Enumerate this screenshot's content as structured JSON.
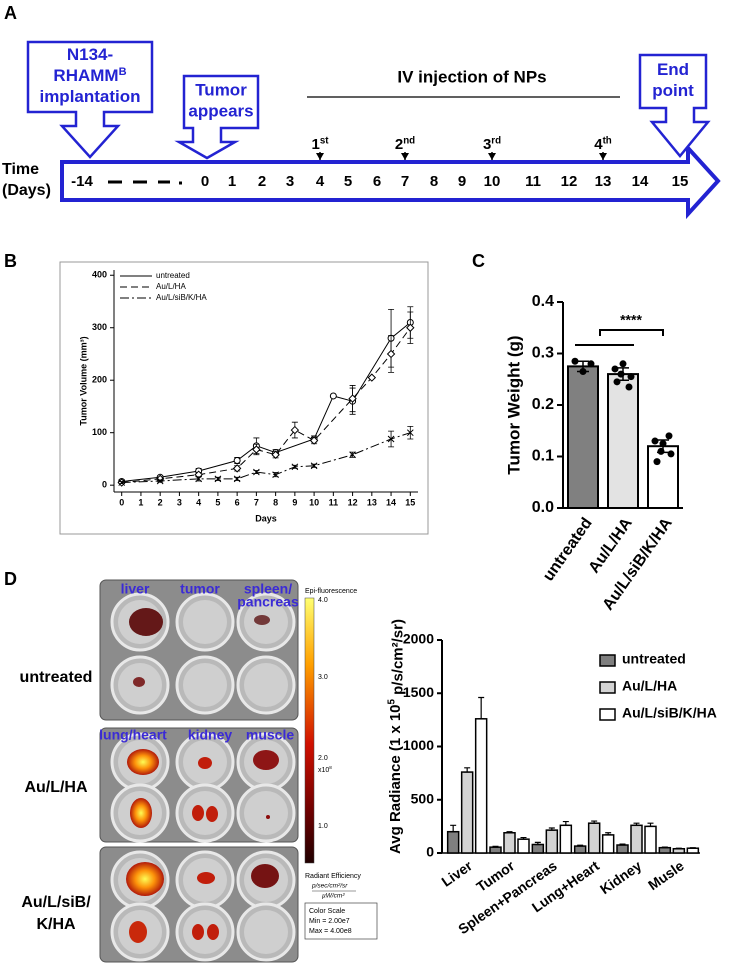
{
  "panel_labels": [
    "A",
    "B",
    "C",
    "D"
  ],
  "timeline": {
    "callouts": [
      {
        "lines": [
          [
            "N134-"
          ],
          [
            "RHAMM",
            "B"
          ],
          [
            "implantation"
          ]
        ]
      },
      {
        "lines": [
          [
            "Tumor"
          ],
          [
            "appears"
          ]
        ]
      },
      {
        "lines": [
          [
            "End"
          ],
          [
            "point"
          ]
        ]
      }
    ],
    "injection_label": "IV injection of NPs",
    "injections": [
      [
        "1",
        "st"
      ],
      [
        "2",
        "nd"
      ],
      [
        "3",
        "rd"
      ],
      [
        "4",
        "th"
      ]
    ],
    "axis_label": [
      "Time",
      "(Days)"
    ],
    "days": [
      "-14",
      "0",
      "1",
      "2",
      "3",
      "4",
      "5",
      "6",
      "7",
      "8",
      "9",
      "10",
      "11",
      "12",
      "13",
      "14",
      "15"
    ]
  },
  "chart_data": [
    {
      "type": "line",
      "x_label": "Days",
      "y_label": "Tumor Volume (mm³)",
      "xlim": [
        -0.4,
        15.4
      ],
      "ylim": [
        -13,
        410
      ],
      "xticks": [
        0,
        1,
        2,
        3,
        4,
        5,
        6,
        7,
        8,
        9,
        10,
        11,
        12,
        13,
        14,
        15
      ],
      "yticks": [
        0,
        100,
        200,
        300,
        400
      ],
      "legend": "upper left",
      "series": [
        {
          "name": "untreated",
          "color": "#000000",
          "line_style": "solid",
          "marker": "circle",
          "x": [
            0,
            2,
            4,
            6,
            7,
            8,
            10,
            11,
            12,
            14,
            15
          ],
          "values": [
            7,
            15,
            27,
            47,
            75,
            62,
            88,
            170,
            160,
            280,
            310
          ],
          "errors": [
            2,
            3,
            5,
            6,
            15,
            6,
            6,
            0,
            25,
            55,
            30
          ]
        },
        {
          "name": "Au/L/HA",
          "color": "#000000",
          "line_style": "dashed",
          "marker": "diamond",
          "x": [
            0,
            2,
            4,
            6,
            7,
            8,
            9,
            10,
            12,
            13,
            14,
            15
          ],
          "values": [
            5,
            12,
            20,
            32,
            68,
            58,
            105,
            85,
            165,
            205,
            250,
            300
          ],
          "errors": [
            2,
            3,
            4,
            5,
            10,
            6,
            15,
            6,
            25,
            0,
            35,
            30
          ]
        },
        {
          "name": "Au/L/siB/K/HA",
          "color": "#000000",
          "line_style": "dashdot",
          "marker": "x",
          "x": [
            0,
            2,
            4,
            5,
            6,
            7,
            8,
            9,
            10,
            12,
            14,
            15
          ],
          "values": [
            5,
            8,
            12,
            12,
            12,
            25,
            20,
            35,
            37,
            58,
            88,
            100
          ],
          "errors": [
            2,
            2,
            4,
            3,
            3,
            3,
            4,
            3,
            3,
            5,
            15,
            12
          ]
        }
      ]
    },
    {
      "type": "bar",
      "y_label": "Tumor Weight (g)",
      "categories": [
        "untreated",
        "Au/L/HA",
        "Au/L/siB/K/HA"
      ],
      "values": [
        0.275,
        0.26,
        0.12
      ],
      "errors": [
        0.01,
        0.012,
        0.012
      ],
      "colors": [
        "#808080",
        "#e3e3e3",
        "#ffffff"
      ],
      "points": [
        [
          0.285,
          0.265,
          0.28
        ],
        [
          0.27,
          0.28,
          0.255,
          0.245,
          0.235,
          0.26
        ],
        [
          0.13,
          0.125,
          0.105,
          0.09,
          0.14,
          0.11
        ]
      ],
      "ylim": [
        0,
        0.4
      ],
      "yticks": [
        {
          "value": 0,
          "label": "0.0"
        },
        0.1,
        0.2,
        0.3,
        0.4
      ],
      "annotation": "****"
    },
    {
      "type": "grouped_bar",
      "y_label": [
        "Avg Radiance (1 x 10",
        "5",
        " p/s/cm²/sr)"
      ],
      "categories": [
        "Liver",
        "Tumor",
        "Spleen+Pancreas",
        "Lung+Heart",
        "Kidney",
        "Musle"
      ],
      "ylim": [
        0,
        2000
      ],
      "yticks": [
        0,
        500,
        1000,
        1500,
        2000
      ],
      "legend": "upper right",
      "series": [
        {
          "name": "untreated",
          "color": "#7f7f7f",
          "values": [
            200,
            55,
            80,
            65,
            75,
            50
          ],
          "errors": [
            60,
            8,
            20,
            8,
            8,
            5
          ]
        },
        {
          "name": "Au/L/HA",
          "color": "#d3d3d3",
          "values": [
            760,
            190,
            215,
            280,
            260,
            40
          ],
          "errors": [
            40,
            10,
            20,
            20,
            20,
            5
          ]
        },
        {
          "name": "Au/L/siB/K/HA",
          "color": "#ffffff",
          "values": [
            1260,
            130,
            260,
            170,
            250,
            45
          ],
          "errors": [
            200,
            15,
            35,
            20,
            30,
            5
          ]
        }
      ]
    }
  ],
  "imaging": {
    "organs_top": [
      [
        "liver"
      ],
      [
        "tumor"
      ],
      [
        "spleen/",
        "pancreas"
      ]
    ],
    "organs_bottom": [
      [
        "lung/heart"
      ],
      [
        "kidney"
      ],
      [
        "muscle"
      ]
    ],
    "groups": [
      [
        "untreated"
      ],
      [
        "Au/L/HA"
      ],
      [
        "Au/L/siB/",
        "K/HA"
      ]
    ],
    "colorbar": {
      "title": "Epi-fluorescence",
      "ticks": [
        "4.0",
        "3.0",
        "2.0",
        "1.0"
      ],
      "scale_exp": [
        "x10",
        "8"
      ],
      "unit_title": "Radiant Efficiency",
      "unit": [
        "p/sec/cm²/sr",
        "µW/cm²"
      ],
      "box": [
        "Color Scale",
        "Min = 2.00e7",
        "Max = 4.00e8"
      ]
    }
  }
}
